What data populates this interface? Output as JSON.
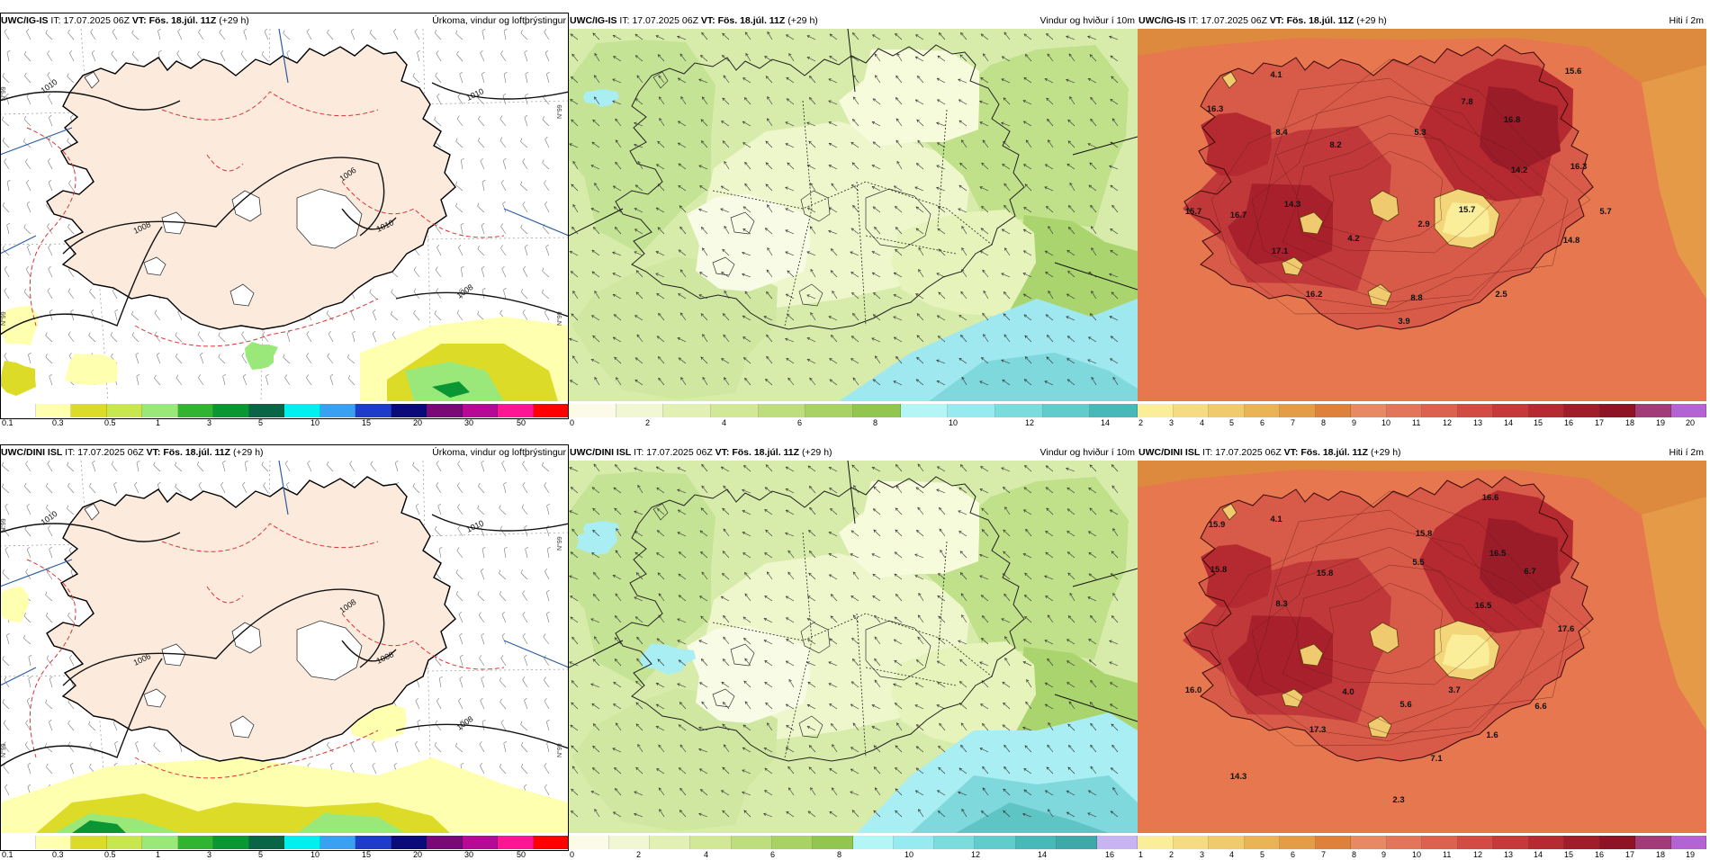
{
  "rows": [
    {
      "model": "UWC/IG-IS",
      "it_label": "IT:",
      "it_value": "17.07.2025 06Z",
      "vt_label": "VT:",
      "vt_value": "Fös. 18.júl. 11Z",
      "lead": "(+29 h)",
      "panels": [
        {
          "title": "Úrkoma, vindur og loftþrýstingur"
        },
        {
          "title": "Vindur og hviður í 10m"
        },
        {
          "title": "Hiti í 2m"
        }
      ],
      "isobars": [
        "1010",
        "1010",
        "1006",
        "1008",
        "1008",
        "1010"
      ],
      "temp_labels": [
        "16.3",
        "8.4",
        "4.1",
        "8.2",
        "5.3",
        "7.8",
        "15.6",
        "16.8",
        "14.2",
        "16.3",
        "15.7",
        "16.7",
        "14.3",
        "4.2",
        "2.9",
        "15.7",
        "14.8",
        "5.7",
        "17.1",
        "16.2",
        "8.8",
        "2.5",
        "3.9"
      ]
    },
    {
      "model": "UWC/DINI ISL",
      "it_label": "IT:",
      "it_value": "17.07.2025 06Z",
      "vt_label": "VT:",
      "vt_value": "Fös. 18.júl. 11Z",
      "lead": "(+29 h)",
      "panels": [
        {
          "title": "Úrkoma, vindur og loftþrýstingur"
        },
        {
          "title": "Vindur og hviður í 10m"
        },
        {
          "title": "Hiti í 2m"
        }
      ],
      "isobars": [
        "1010",
        "1010",
        "1008",
        "1006",
        "1008",
        "1008"
      ],
      "temp_labels": [
        "15.9",
        "4.1",
        "15.8",
        "15.8",
        "5.5",
        "16.6",
        "16.5",
        "6.7",
        "15.8",
        "8.3",
        "16.5",
        "17.6",
        "16.0",
        "4.0",
        "5.6",
        "3.7",
        "6.6",
        "17.3",
        "1.6",
        "7.1",
        "14.3",
        "2.3"
      ]
    }
  ],
  "precip_scale": {
    "colors": [
      "#ffffff",
      "#ffffb0",
      "#dcdc28",
      "#c8e650",
      "#9be87a",
      "#32b432",
      "#0a9632",
      "#0a6446",
      "#00f0f0",
      "#3ca0f0",
      "#1e3cc8",
      "#0a0a78",
      "#780a78",
      "#b40a96",
      "#ff1493",
      "#ff0000"
    ],
    "labels": [
      "0.1",
      "0.3",
      "0.5",
      "1",
      "3",
      "5",
      "10",
      "15",
      "20",
      "30",
      "50"
    ]
  },
  "wind_scale": {
    "colors": [
      "#fbfbe8",
      "#f0f7d2",
      "#e2f0b4",
      "#d2e896",
      "#bedd7e",
      "#a8d266",
      "#92c650",
      "#b4f5f5",
      "#96eaf0",
      "#7cdcdc",
      "#62cbcb",
      "#48b8b8"
    ],
    "labels": [
      "0",
      "2",
      "4",
      "6",
      "8",
      "10",
      "12",
      "14"
    ]
  },
  "wind_scale_dini": {
    "colors": [
      "#fbfbe8",
      "#f0f7d2",
      "#e2f0b4",
      "#d2e896",
      "#bedd7e",
      "#a8d266",
      "#92c650",
      "#b4f5f5",
      "#96eaf0",
      "#7cdcdc",
      "#62cbcb",
      "#48b8b8",
      "#40a8a8",
      "#c8b4f0"
    ],
    "labels": [
      "0",
      "2",
      "4",
      "6",
      "8",
      "10",
      "12",
      "14",
      "16"
    ]
  },
  "temp_scale": {
    "colors": [
      "#fbee9a",
      "#f5dc84",
      "#efca6e",
      "#e9b458",
      "#e39c48",
      "#dc823c",
      "#e68a64",
      "#e2765a",
      "#dc6250",
      "#d24c46",
      "#c43a3a",
      "#b42c32",
      "#a01e2a",
      "#8c1424",
      "#a03c78",
      "#b464d2"
    ],
    "labels": [
      "2",
      "3",
      "4",
      "5",
      "6",
      "7",
      "8",
      "9",
      "10",
      "11",
      "12",
      "13",
      "14",
      "15",
      "16",
      "17",
      "18",
      "19",
      "20"
    ]
  },
  "temp_scale_dini": {
    "colors": [
      "#fbee9a",
      "#f5dc84",
      "#efca6e",
      "#e9b458",
      "#e39c48",
      "#dc823c",
      "#e68a64",
      "#e2765a",
      "#dc6250",
      "#d24c46",
      "#c43a3a",
      "#b42c32",
      "#a01e2a",
      "#8c1424",
      "#a03c78",
      "#b464d2"
    ],
    "labels": [
      "1",
      "2",
      "3",
      "4",
      "5",
      "6",
      "7",
      "8",
      "9",
      "10",
      "11",
      "12",
      "13",
      "14",
      "15",
      "16",
      "17",
      "18",
      "19"
    ]
  },
  "lat_ticks": [
    "N°99",
    "N°99",
    "N°99",
    "N°99"
  ]
}
